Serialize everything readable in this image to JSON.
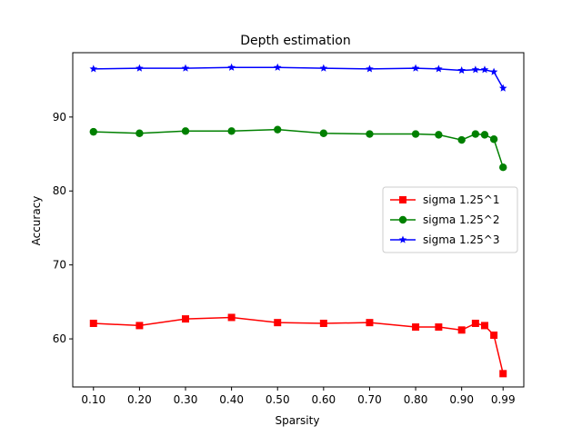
{
  "chart_data": {
    "type": "line",
    "title": "Depth estimation",
    "xlabel": "Sparsity",
    "ylabel": "Accuracy",
    "x": [
      0.1,
      0.2,
      0.3,
      0.4,
      0.5,
      0.6,
      0.7,
      0.8,
      0.85,
      0.9,
      0.93,
      0.95,
      0.97,
      0.99
    ],
    "x_tick_labels": [
      "0.10",
      "0.20",
      "0.30",
      "0.40",
      "0.50",
      "0.60",
      "0.70",
      "0.80",
      "0.90",
      "0.99"
    ],
    "y_ticks": [
      60,
      70,
      80,
      90
    ],
    "ylim": [
      53.5,
      98.7
    ],
    "grid": false,
    "legend_position": "center-right",
    "series": [
      {
        "name": "sigma 1.25^1",
        "color": "#ff0000",
        "marker": "square",
        "values": [
          62.1,
          61.8,
          62.7,
          62.9,
          62.2,
          62.1,
          62.2,
          61.6,
          61.6,
          61.2,
          62.1,
          61.8,
          60.5,
          55.3
        ]
      },
      {
        "name": "sigma 1.25^2",
        "color": "#008000",
        "marker": "circle",
        "values": [
          88.0,
          87.8,
          88.1,
          88.1,
          88.3,
          87.8,
          87.7,
          87.7,
          87.6,
          86.9,
          87.7,
          87.6,
          87.0,
          83.2
        ]
      },
      {
        "name": "sigma 1.25^3",
        "color": "#0000ff",
        "marker": "star",
        "values": [
          96.5,
          96.6,
          96.6,
          96.7,
          96.7,
          96.6,
          96.5,
          96.6,
          96.5,
          96.3,
          96.4,
          96.4,
          96.1,
          93.9
        ]
      }
    ]
  }
}
